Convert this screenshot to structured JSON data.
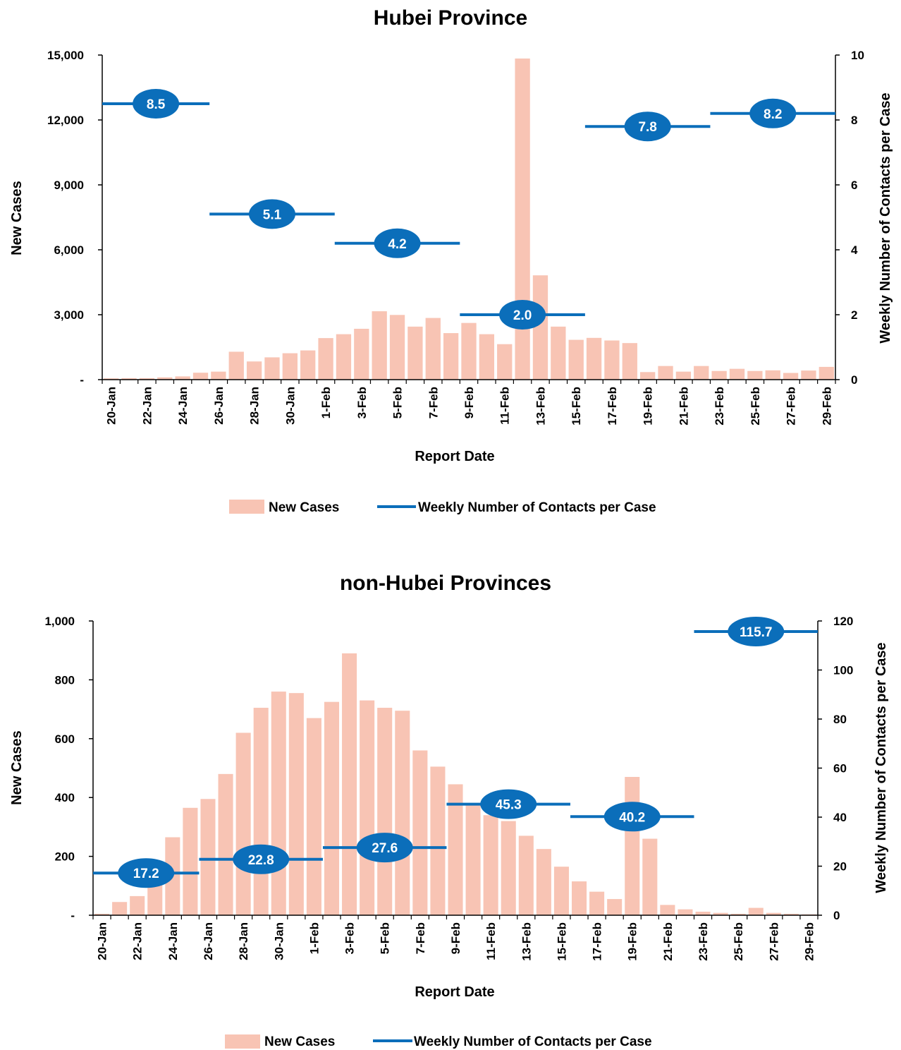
{
  "chart_data": [
    {
      "type": "bar",
      "title": "Hubei Province",
      "xlabel": "Report Date",
      "ylabel": "New Cases",
      "y2label": "Weekly Number of Contacts per Case",
      "ylim": [
        0,
        15000
      ],
      "y2lim": [
        0,
        10
      ],
      "yticks": [
        "-",
        "3,000",
        "6,000",
        "9,000",
        "12,000",
        "15,000"
      ],
      "y2ticks": [
        "0",
        "2",
        "4",
        "6",
        "8",
        "10"
      ],
      "categories": [
        "20-Jan",
        "21-Jan",
        "22-Jan",
        "23-Jan",
        "24-Jan",
        "25-Jan",
        "26-Jan",
        "27-Jan",
        "28-Jan",
        "29-Jan",
        "30-Jan",
        "31-Jan",
        "1-Feb",
        "2-Feb",
        "3-Feb",
        "4-Feb",
        "5-Feb",
        "6-Feb",
        "7-Feb",
        "8-Feb",
        "9-Feb",
        "10-Feb",
        "11-Feb",
        "12-Feb",
        "13-Feb",
        "14-Feb",
        "15-Feb",
        "16-Feb",
        "17-Feb",
        "18-Feb",
        "19-Feb",
        "20-Feb",
        "21-Feb",
        "22-Feb",
        "23-Feb",
        "24-Feb",
        "25-Feb",
        "26-Feb",
        "27-Feb",
        "28-Feb",
        "29-Feb"
      ],
      "xtick_labels": [
        "20-Jan",
        "22-Jan",
        "24-Jan",
        "26-Jan",
        "28-Jan",
        "30-Jan",
        "1-Feb",
        "3-Feb",
        "5-Feb",
        "7-Feb",
        "9-Feb",
        "11-Feb",
        "13-Feb",
        "15-Feb",
        "17-Feb",
        "19-Feb",
        "21-Feb",
        "23-Feb",
        "25-Feb",
        "27-Feb",
        "29-Feb"
      ],
      "series": [
        {
          "name": "New Cases",
          "axis": "left",
          "color": "#f8c4b4",
          "values": [
            60,
            70,
            70,
            105,
            150,
            320,
            370,
            1290,
            840,
            1030,
            1220,
            1350,
            1920,
            2100,
            2350,
            3160,
            2990,
            2450,
            2850,
            2150,
            2620,
            2100,
            1640,
            14840,
            4820,
            2450,
            1840,
            1930,
            1810,
            1690,
            350,
            630,
            370,
            630,
            400,
            500,
            400,
            430,
            310,
            420,
            590
          ]
        },
        {
          "name": "Weekly Number of Contacts per Case",
          "axis": "right",
          "color": "#0b6eba",
          "segments": [
            {
              "from": "20-Jan",
              "to": "25-Jan",
              "value": 8.5,
              "label": "8.5"
            },
            {
              "from": "26-Jan",
              "to": "1-Feb",
              "value": 5.1,
              "label": "5.1"
            },
            {
              "from": "2-Feb",
              "to": "8-Feb",
              "value": 4.2,
              "label": "4.2"
            },
            {
              "from": "9-Feb",
              "to": "15-Feb",
              "value": 2.0,
              "label": "2.0"
            },
            {
              "from": "16-Feb",
              "to": "22-Feb",
              "value": 7.8,
              "label": "7.8"
            },
            {
              "from": "23-Feb",
              "to": "29-Feb",
              "value": 8.2,
              "label": "8.2"
            }
          ]
        }
      ],
      "legend": [
        "New Cases",
        "Weekly Number of Contacts per Case"
      ],
      "legend_position": "bottom",
      "grid": false
    },
    {
      "type": "bar",
      "title": "non-Hubei Provinces",
      "xlabel": "Report Date",
      "ylabel": "New Cases",
      "y2label": "Weekly Number of Contacts per Case",
      "ylim": [
        0,
        1000
      ],
      "y2lim": [
        0,
        120
      ],
      "yticks": [
        "-",
        "200",
        "400",
        "600",
        "800",
        "1,000"
      ],
      "y2ticks": [
        "0",
        "20",
        "40",
        "60",
        "80",
        "100",
        "120"
      ],
      "categories": [
        "20-Jan",
        "21-Jan",
        "22-Jan",
        "23-Jan",
        "24-Jan",
        "25-Jan",
        "26-Jan",
        "27-Jan",
        "28-Jan",
        "29-Jan",
        "30-Jan",
        "31-Jan",
        "1-Feb",
        "2-Feb",
        "3-Feb",
        "4-Feb",
        "5-Feb",
        "6-Feb",
        "7-Feb",
        "8-Feb",
        "9-Feb",
        "10-Feb",
        "11-Feb",
        "12-Feb",
        "13-Feb",
        "14-Feb",
        "15-Feb",
        "16-Feb",
        "17-Feb",
        "18-Feb",
        "19-Feb",
        "20-Feb",
        "21-Feb",
        "22-Feb",
        "23-Feb",
        "24-Feb",
        "25-Feb",
        "26-Feb",
        "27-Feb",
        "28-Feb",
        "29-Feb"
      ],
      "xtick_labels": [
        "20-Jan",
        "22-Jan",
        "24-Jan",
        "26-Jan",
        "28-Jan",
        "30-Jan",
        "1-Feb",
        "3-Feb",
        "5-Feb",
        "7-Feb",
        "9-Feb",
        "11-Feb",
        "13-Feb",
        "15-Feb",
        "17-Feb",
        "19-Feb",
        "21-Feb",
        "23-Feb",
        "25-Feb",
        "27-Feb",
        "29-Feb"
      ],
      "series": [
        {
          "name": "New Cases",
          "axis": "left",
          "color": "#f8c4b4",
          "values": [
            5,
            45,
            65,
            110,
            265,
            365,
            395,
            480,
            620,
            705,
            760,
            755,
            670,
            725,
            890,
            730,
            705,
            695,
            560,
            505,
            445,
            375,
            340,
            320,
            270,
            225,
            165,
            115,
            80,
            55,
            470,
            260,
            35,
            20,
            12,
            8,
            5,
            25,
            8,
            5,
            3
          ]
        },
        {
          "name": "Weekly Number of Contacts per Case",
          "axis": "right",
          "color": "#0b6eba",
          "segments": [
            {
              "from": "20-Jan",
              "to": "25-Jan",
              "value": 17.2,
              "label": "17.2"
            },
            {
              "from": "26-Jan",
              "to": "1-Feb",
              "value": 22.8,
              "label": "22.8"
            },
            {
              "from": "2-Feb",
              "to": "8-Feb",
              "value": 27.6,
              "label": "27.6"
            },
            {
              "from": "9-Feb",
              "to": "15-Feb",
              "value": 45.3,
              "label": "45.3"
            },
            {
              "from": "16-Feb",
              "to": "22-Feb",
              "value": 40.2,
              "label": "40.2"
            },
            {
              "from": "23-Feb",
              "to": "29-Feb",
              "value": 115.7,
              "label": "115.7"
            }
          ]
        }
      ],
      "legend": [
        "New Cases",
        "Weekly Number of Contacts per Case"
      ],
      "legend_position": "bottom",
      "grid": false
    }
  ]
}
